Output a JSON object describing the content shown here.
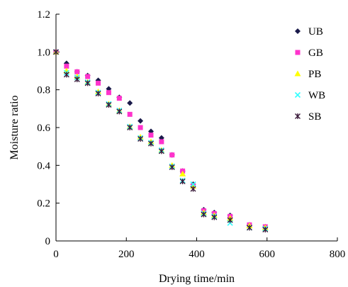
{
  "chart_data": {
    "type": "scatter",
    "title": "",
    "xlabel": "Drying time/min",
    "ylabel": "Moisture ratio",
    "xlim": [
      0,
      800
    ],
    "ylim": [
      0,
      1.2
    ],
    "xticks": [
      "0",
      "200",
      "400",
      "600",
      "800"
    ],
    "yticks": [
      "0",
      "0.2",
      "0.4",
      "0.6",
      "0.8",
      "1.0",
      "1.2"
    ],
    "grid": false,
    "legend": "top-right",
    "series": [
      {
        "name": "UB",
        "marker": "diamond",
        "color": "#1a1a4a",
        "x": [
          0,
          30,
          60,
          90,
          120,
          150,
          180,
          210,
          240,
          270,
          300,
          330,
          360,
          390,
          420,
          450,
          495,
          550,
          595
        ],
        "y": [
          1.0,
          0.94,
          0.895,
          0.875,
          0.85,
          0.805,
          0.76,
          0.73,
          0.635,
          0.58,
          0.545,
          0.455,
          0.37,
          0.3,
          0.165,
          0.15,
          0.135,
          0.085,
          0.075
        ]
      },
      {
        "name": "GB",
        "marker": "square",
        "color": "#ff33cc",
        "x": [
          0,
          30,
          60,
          90,
          120,
          150,
          180,
          210,
          240,
          270,
          300,
          330,
          360,
          390,
          420,
          450,
          495,
          550,
          595
        ],
        "y": [
          1.0,
          0.925,
          0.895,
          0.87,
          0.835,
          0.785,
          0.755,
          0.67,
          0.6,
          0.56,
          0.525,
          0.455,
          0.37,
          0.29,
          0.16,
          0.145,
          0.13,
          0.085,
          0.075
        ]
      },
      {
        "name": "PB",
        "marker": "triangle",
        "color": "#ffff00",
        "x": [
          0,
          30,
          60,
          90,
          120,
          150,
          180,
          210,
          240,
          270,
          300,
          330,
          360,
          390,
          420,
          450,
          495,
          550,
          595
        ],
        "y": [
          1.0,
          0.9,
          0.87,
          0.84,
          0.79,
          0.725,
          0.69,
          0.605,
          0.55,
          0.525,
          0.48,
          0.4,
          0.355,
          0.29,
          0.15,
          0.135,
          0.12,
          0.08,
          0.07
        ]
      },
      {
        "name": "WB",
        "marker": "x",
        "color": "#33ffff",
        "x": [
          0,
          30,
          60,
          90,
          120,
          150,
          180,
          210,
          240,
          270,
          300,
          330,
          360,
          390,
          420,
          450,
          495,
          550,
          595
        ],
        "y": [
          1.0,
          0.89,
          0.865,
          0.84,
          0.785,
          0.725,
          0.69,
          0.605,
          0.545,
          0.52,
          0.48,
          0.395,
          0.32,
          0.3,
          0.145,
          0.13,
          0.095,
          0.07,
          0.065
        ]
      },
      {
        "name": "SB",
        "marker": "asterisk",
        "color": "#3a1a3a",
        "x": [
          0,
          30,
          60,
          90,
          120,
          150,
          180,
          210,
          240,
          270,
          300,
          330,
          360,
          390,
          420,
          450,
          495,
          550,
          595
        ],
        "y": [
          1.0,
          0.88,
          0.855,
          0.835,
          0.78,
          0.72,
          0.685,
          0.6,
          0.54,
          0.515,
          0.475,
          0.39,
          0.315,
          0.275,
          0.14,
          0.125,
          0.11,
          0.07,
          0.06
        ]
      }
    ]
  }
}
